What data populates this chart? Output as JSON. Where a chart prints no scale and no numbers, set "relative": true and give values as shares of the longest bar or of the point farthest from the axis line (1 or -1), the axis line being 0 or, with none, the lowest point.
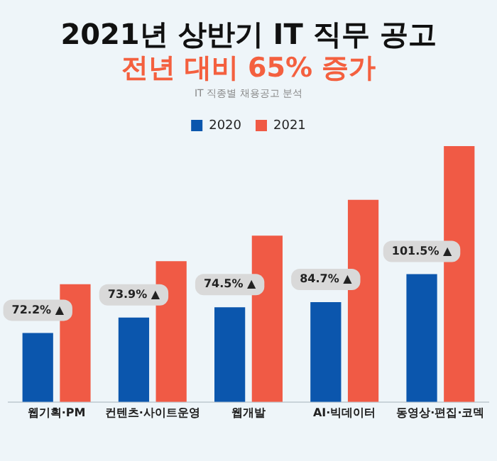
{
  "chart_data": {
    "type": "bar",
    "title": "2021년 상반기 IT 직무 공고",
    "subtitle": "전년 대비 65% 증가",
    "annotations": [
      "IT 직종별 채용공고 분석",
      {
        "text": "72.2% ▲",
        "x": "웹기획·PM"
      },
      {
        "text": "73.9% ▲",
        "x": "컨텐츠·사이트운영"
      },
      {
        "text": "74.5% ▲",
        "x": "웹개발"
      },
      {
        "text": "84.7% ▲",
        "x": "AI·빅데이터"
      },
      {
        "text": "101.5% ▲",
        "x": "동영상·편집·코덱"
      }
    ],
    "categories": [
      "웹기획·PM",
      "컨텐츠·사이트운영",
      "웹개발",
      "AI·빅데이터",
      "동영상·편집·코덱"
    ],
    "relative": true,
    "legend": "top",
    "grid": false,
    "series": [
      {
        "name": "2020",
        "color": "#0b56ad",
        "values": [
          0.27,
          0.33,
          0.37,
          0.39,
          0.5
        ]
      },
      {
        "name": "2021",
        "color": "#f05a45",
        "values": [
          0.46,
          0.55,
          0.65,
          0.79,
          1
        ]
      }
    ]
  }
}
